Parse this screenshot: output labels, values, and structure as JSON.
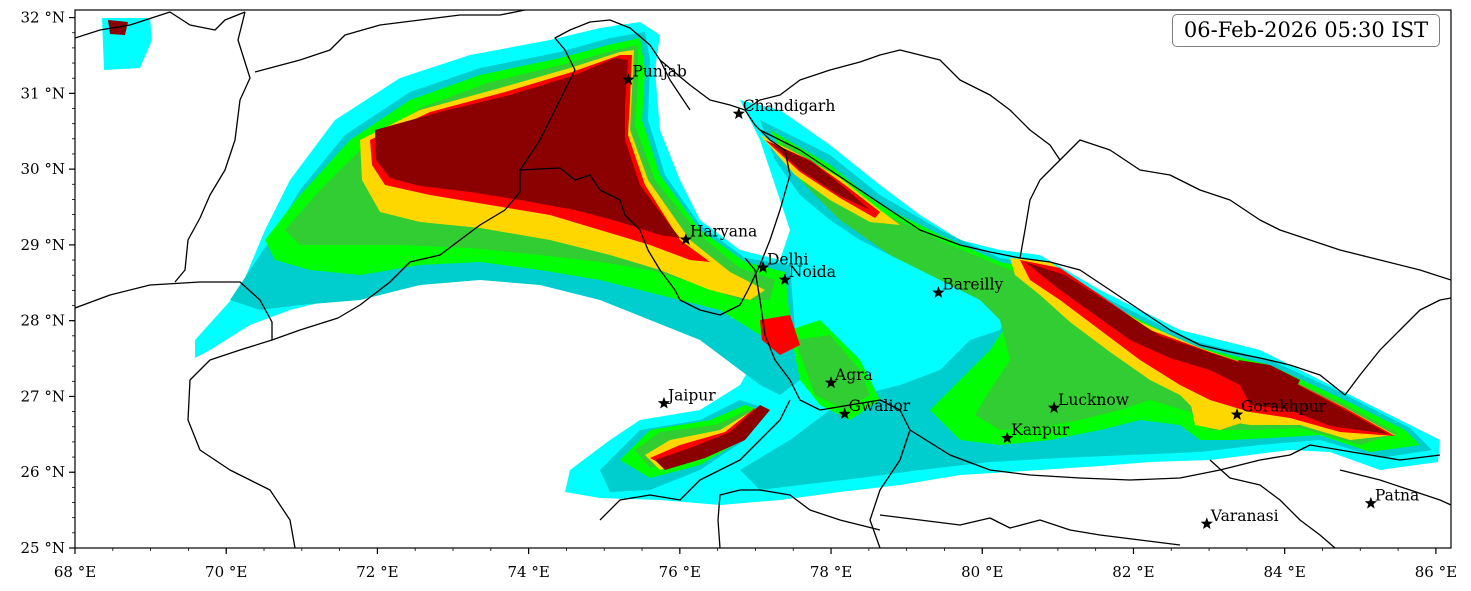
{
  "timestamp": "06-Feb-2026 05:30 IST",
  "lat_ticks": [
    {
      "lat": 32,
      "label": "32 °N"
    },
    {
      "lat": 31,
      "label": "31 °N"
    },
    {
      "lat": 30,
      "label": "30 °N"
    },
    {
      "lat": 29,
      "label": "29 °N"
    },
    {
      "lat": 28,
      "label": "28 °N"
    },
    {
      "lat": 27,
      "label": "27 °N"
    },
    {
      "lat": 26,
      "label": "26 °N"
    },
    {
      "lat": 25,
      "label": "25 °N"
    }
  ],
  "lon_ticks": [
    {
      "lon": 68,
      "label": "68 °E"
    },
    {
      "lon": 70,
      "label": "70 °E"
    },
    {
      "lon": 72,
      "label": "72 °E"
    },
    {
      "lon": 74,
      "label": "74 °E"
    },
    {
      "lon": 76,
      "label": "76 °E"
    },
    {
      "lon": 78,
      "label": "78 °E"
    },
    {
      "lon": 80,
      "label": "80 °E"
    },
    {
      "lon": 82,
      "label": "82 °E"
    },
    {
      "lon": 84,
      "label": "84 °E"
    },
    {
      "lon": 86,
      "label": "86 °E"
    }
  ],
  "extent": {
    "lon_min": 68,
    "lon_max": 86.2,
    "lat_min": 25,
    "lat_max": 32.1
  },
  "cities": [
    {
      "name": "Punjab",
      "lon": 75.32,
      "lat": 31.18
    },
    {
      "name": "Chandigarh",
      "lon": 76.78,
      "lat": 30.73
    },
    {
      "name": "Haryana",
      "lon": 76.08,
      "lat": 29.07
    },
    {
      "name": "Delhi",
      "lon": 77.1,
      "lat": 28.7
    },
    {
      "name": "Noida",
      "lon": 77.39,
      "lat": 28.54
    },
    {
      "name": "Bareilly",
      "lon": 79.42,
      "lat": 28.37
    },
    {
      "name": "Agra",
      "lon": 78.0,
      "lat": 27.18
    },
    {
      "name": "Jaipur",
      "lon": 75.79,
      "lat": 26.91
    },
    {
      "name": "Gwalior",
      "lon": 78.18,
      "lat": 26.77
    },
    {
      "name": "Lucknow",
      "lon": 80.95,
      "lat": 26.85
    },
    {
      "name": "Kanpur",
      "lon": 80.33,
      "lat": 26.45
    },
    {
      "name": "Gorakhpur",
      "lon": 83.37,
      "lat": 26.76
    },
    {
      "name": "Varanasi",
      "lon": 82.97,
      "lat": 25.32
    },
    {
      "name": "Patna",
      "lon": 85.14,
      "lat": 25.59
    }
  ],
  "contour_colors": [
    "#00ffff",
    "#00cdcd",
    "#00ff00",
    "#32cd32",
    "#ffd700",
    "#ff0000",
    "#8b0000"
  ]
}
